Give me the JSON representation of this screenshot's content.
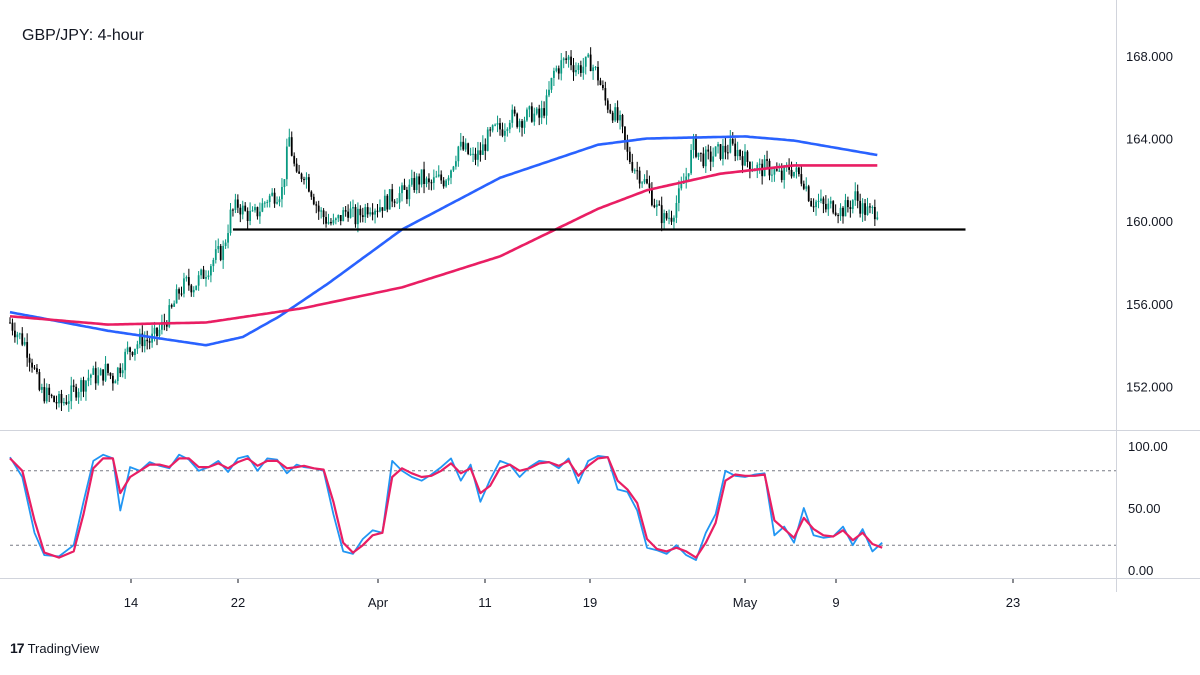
{
  "chart_data": {
    "type": "candlestick",
    "title": "GBP/JPY: 4-hour",
    "price_axis": {
      "ticks": [
        "168.000",
        "164.000",
        "160.000",
        "156.000",
        "152.000"
      ],
      "ylim": [
        149.9,
        170.7
      ]
    },
    "time_axis": {
      "ticks": [
        "14",
        "22",
        "Apr",
        "11",
        "19",
        "May",
        "9",
        "23"
      ]
    },
    "ohlc_path_close": [
      [
        0,
        155.1
      ],
      [
        3,
        154.6
      ],
      [
        6,
        154.1
      ],
      [
        9,
        153.2
      ],
      [
        12,
        151.8
      ],
      [
        15,
        151.6
      ],
      [
        18,
        151.3
      ],
      [
        21,
        151.2
      ],
      [
        24,
        151.5
      ],
      [
        27,
        151.9
      ],
      [
        30,
        152.2
      ],
      [
        33,
        152.6
      ],
      [
        36,
        152.4
      ],
      [
        39,
        152.8
      ],
      [
        42,
        152.4
      ],
      [
        45,
        153.0
      ],
      [
        48,
        153.7
      ],
      [
        51,
        154.0
      ],
      [
        54,
        154.3
      ],
      [
        57,
        154.2
      ],
      [
        60,
        154.5
      ],
      [
        63,
        155.1
      ],
      [
        66,
        155.7
      ],
      [
        69,
        156.6
      ],
      [
        72,
        157.0
      ],
      [
        75,
        156.9
      ],
      [
        78,
        157.3
      ],
      [
        81,
        157.8
      ],
      [
        84,
        158.3
      ],
      [
        87,
        158.6
      ],
      [
        90,
        160.3
      ],
      [
        93,
        160.8
      ],
      [
        96,
        160.4
      ],
      [
        99,
        160.2
      ],
      [
        102,
        160.6
      ],
      [
        105,
        161.1
      ],
      [
        108,
        161.3
      ],
      [
        111,
        161.5
      ],
      [
        114,
        164.0
      ],
      [
        117,
        162.0
      ],
      [
        120,
        162.4
      ],
      [
        123,
        161.5
      ],
      [
        126,
        160.5
      ],
      [
        129,
        160.1
      ],
      [
        132,
        159.8
      ],
      [
        135,
        160.2
      ],
      [
        138,
        160.6
      ],
      [
        141,
        160.1
      ],
      [
        144,
        160.5
      ],
      [
        147,
        160.8
      ],
      [
        150,
        160.7
      ],
      [
        153,
        160.9
      ],
      [
        156,
        161.2
      ],
      [
        159,
        161.3
      ],
      [
        162,
        161.4
      ],
      [
        165,
        161.8
      ],
      [
        168,
        162.1
      ],
      [
        171,
        161.7
      ],
      [
        174,
        162.0
      ],
      [
        177,
        162.0
      ],
      [
        180,
        162.6
      ],
      [
        183,
        163.6
      ],
      [
        186,
        163.4
      ],
      [
        189,
        163.0
      ],
      [
        192,
        163.3
      ],
      [
        195,
        164.0
      ],
      [
        198,
        164.4
      ],
      [
        201,
        164.5
      ],
      [
        204,
        165.1
      ],
      [
        207,
        164.9
      ],
      [
        210,
        165.0
      ],
      [
        213,
        165.2
      ],
      [
        216,
        165.0
      ],
      [
        219,
        165.7
      ],
      [
        222,
        167.2
      ],
      [
        225,
        167.6
      ],
      [
        228,
        167.9
      ],
      [
        231,
        167.4
      ],
      [
        234,
        167.5
      ],
      [
        237,
        167.7
      ],
      [
        240,
        167.0
      ],
      [
        243,
        165.8
      ],
      [
        246,
        165.3
      ],
      [
        249,
        164.7
      ],
      [
        252,
        163.2
      ],
      [
        255,
        162.6
      ],
      [
        258,
        162.1
      ],
      [
        261,
        161.5
      ],
      [
        264,
        160.6
      ],
      [
        267,
        160.1
      ],
      [
        270,
        160.3
      ],
      [
        273,
        161.2
      ],
      [
        276,
        162.2
      ],
      [
        279,
        163.7
      ],
      [
        282,
        163.1
      ],
      [
        285,
        163.0
      ],
      [
        288,
        163.3
      ],
      [
        291,
        163.4
      ],
      [
        294,
        163.6
      ],
      [
        297,
        163.4
      ],
      [
        300,
        163.0
      ],
      [
        303,
        162.7
      ],
      [
        306,
        162.5
      ],
      [
        309,
        162.6
      ],
      [
        312,
        162.4
      ],
      [
        315,
        162.1
      ],
      [
        318,
        162.6
      ],
      [
        321,
        162.3
      ],
      [
        324,
        162.0
      ],
      [
        327,
        161.0
      ],
      [
        330,
        160.9
      ],
      [
        333,
        160.6
      ],
      [
        336,
        160.8
      ],
      [
        339,
        160.5
      ],
      [
        342,
        160.7
      ],
      [
        345,
        161.2
      ],
      [
        348,
        160.6
      ],
      [
        351,
        160.4
      ],
      [
        354,
        160.6
      ]
    ],
    "series": [
      {
        "name": "",
        "color": "#2962ff",
        "x": [
          0,
          40,
          80,
          95,
          110,
          130,
          160,
          200,
          240,
          260,
          300,
          320,
          354
        ],
        "values": [
          155.6,
          154.7,
          154.0,
          154.4,
          155.4,
          157.0,
          159.6,
          162.1,
          163.7,
          164.0,
          164.1,
          163.9,
          163.2
        ]
      },
      {
        "name": "",
        "color": "#e91e63",
        "x": [
          0,
          40,
          80,
          120,
          160,
          200,
          240,
          260,
          290,
          320,
          354
        ],
        "values": [
          155.4,
          155.0,
          155.1,
          155.8,
          156.8,
          158.3,
          160.6,
          161.5,
          162.3,
          162.7,
          162.7
        ]
      }
    ],
    "annotations": [
      {
        "type": "horizontal_line",
        "value": 159.6,
        "x_start": 91,
        "x_end": 390,
        "color": "#000000"
      }
    ],
    "oscillator": {
      "ticks": [
        "100.00",
        "50.00",
        "0.00"
      ],
      "ylim": [
        0,
        100
      ],
      "levels": [
        80,
        20
      ],
      "k": [
        [
          0,
          91
        ],
        [
          5,
          75
        ],
        [
          10,
          30
        ],
        [
          14,
          12
        ],
        [
          20,
          11
        ],
        [
          26,
          20
        ],
        [
          30,
          55
        ],
        [
          34,
          88
        ],
        [
          38,
          93
        ],
        [
          42,
          90
        ],
        [
          45,
          48
        ],
        [
          49,
          83
        ],
        [
          53,
          80
        ],
        [
          57,
          87
        ],
        [
          61,
          84
        ],
        [
          65,
          82
        ],
        [
          69,
          93
        ],
        [
          73,
          89
        ],
        [
          77,
          80
        ],
        [
          81,
          83
        ],
        [
          85,
          88
        ],
        [
          89,
          79
        ],
        [
          93,
          90
        ],
        [
          97,
          92
        ],
        [
          101,
          80
        ],
        [
          105,
          90
        ],
        [
          109,
          89
        ],
        [
          113,
          78
        ],
        [
          117,
          85
        ],
        [
          120,
          83
        ],
        [
          124,
          82
        ],
        [
          128,
          80
        ],
        [
          132,
          45
        ],
        [
          136,
          15
        ],
        [
          140,
          13
        ],
        [
          144,
          25
        ],
        [
          148,
          32
        ],
        [
          152,
          30
        ],
        [
          156,
          88
        ],
        [
          160,
          80
        ],
        [
          164,
          75
        ],
        [
          168,
          72
        ],
        [
          172,
          77
        ],
        [
          176,
          83
        ],
        [
          180,
          90
        ],
        [
          184,
          72
        ],
        [
          188,
          85
        ],
        [
          192,
          55
        ],
        [
          196,
          73
        ],
        [
          200,
          88
        ],
        [
          204,
          85
        ],
        [
          208,
          75
        ],
        [
          212,
          83
        ],
        [
          216,
          88
        ],
        [
          220,
          87
        ],
        [
          224,
          82
        ],
        [
          228,
          90
        ],
        [
          232,
          70
        ],
        [
          236,
          88
        ],
        [
          240,
          92
        ],
        [
          244,
          91
        ],
        [
          248,
          65
        ],
        [
          252,
          63
        ],
        [
          256,
          48
        ],
        [
          260,
          18
        ],
        [
          264,
          16
        ],
        [
          268,
          13
        ],
        [
          272,
          20
        ],
        [
          276,
          12
        ],
        [
          280,
          8
        ],
        [
          284,
          30
        ],
        [
          288,
          45
        ],
        [
          292,
          80
        ],
        [
          296,
          76
        ],
        [
          300,
          75
        ],
        [
          304,
          77
        ],
        [
          308,
          78
        ],
        [
          312,
          28
        ],
        [
          316,
          35
        ],
        [
          320,
          22
        ],
        [
          324,
          50
        ],
        [
          328,
          28
        ],
        [
          332,
          26
        ],
        [
          336,
          27
        ],
        [
          340,
          35
        ],
        [
          344,
          20
        ],
        [
          348,
          33
        ],
        [
          352,
          15
        ],
        [
          356,
          22
        ]
      ],
      "d": [
        [
          0,
          90
        ],
        [
          5,
          80
        ],
        [
          10,
          40
        ],
        [
          14,
          14
        ],
        [
          20,
          10
        ],
        [
          26,
          15
        ],
        [
          30,
          45
        ],
        [
          34,
          82
        ],
        [
          38,
          90
        ],
        [
          42,
          90
        ],
        [
          45,
          62
        ],
        [
          49,
          75
        ],
        [
          53,
          80
        ],
        [
          57,
          85
        ],
        [
          61,
          85
        ],
        [
          65,
          83
        ],
        [
          69,
          90
        ],
        [
          73,
          90
        ],
        [
          77,
          83
        ],
        [
          81,
          83
        ],
        [
          85,
          86
        ],
        [
          89,
          82
        ],
        [
          93,
          87
        ],
        [
          97,
          90
        ],
        [
          101,
          84
        ],
        [
          105,
          88
        ],
        [
          109,
          88
        ],
        [
          113,
          82
        ],
        [
          117,
          83
        ],
        [
          120,
          84
        ],
        [
          124,
          82
        ],
        [
          128,
          81
        ],
        [
          132,
          55
        ],
        [
          136,
          22
        ],
        [
          140,
          14
        ],
        [
          144,
          20
        ],
        [
          148,
          28
        ],
        [
          152,
          30
        ],
        [
          156,
          75
        ],
        [
          160,
          82
        ],
        [
          164,
          78
        ],
        [
          168,
          75
        ],
        [
          172,
          76
        ],
        [
          176,
          80
        ],
        [
          180,
          86
        ],
        [
          184,
          78
        ],
        [
          188,
          82
        ],
        [
          192,
          62
        ],
        [
          196,
          68
        ],
        [
          200,
          82
        ],
        [
          204,
          85
        ],
        [
          208,
          80
        ],
        [
          212,
          82
        ],
        [
          216,
          86
        ],
        [
          220,
          87
        ],
        [
          224,
          84
        ],
        [
          228,
          88
        ],
        [
          232,
          76
        ],
        [
          236,
          84
        ],
        [
          240,
          90
        ],
        [
          244,
          91
        ],
        [
          248,
          72
        ],
        [
          252,
          65
        ],
        [
          256,
          54
        ],
        [
          260,
          25
        ],
        [
          264,
          17
        ],
        [
          268,
          15
        ],
        [
          272,
          18
        ],
        [
          276,
          15
        ],
        [
          280,
          10
        ],
        [
          284,
          22
        ],
        [
          288,
          38
        ],
        [
          292,
          72
        ],
        [
          296,
          77
        ],
        [
          300,
          76
        ],
        [
          304,
          76
        ],
        [
          308,
          77
        ],
        [
          312,
          40
        ],
        [
          316,
          33
        ],
        [
          320,
          26
        ],
        [
          324,
          42
        ],
        [
          328,
          33
        ],
        [
          332,
          28
        ],
        [
          336,
          27
        ],
        [
          340,
          32
        ],
        [
          344,
          24
        ],
        [
          348,
          30
        ],
        [
          352,
          21
        ],
        [
          356,
          18
        ]
      ]
    }
  },
  "branding": {
    "logo": "17",
    "name": "TradingView"
  },
  "colors": {
    "up": "#089981",
    "down": "#000000",
    "grid": "#787b86",
    "ma_blue": "#2962ff",
    "ma_pink": "#e91e63"
  }
}
